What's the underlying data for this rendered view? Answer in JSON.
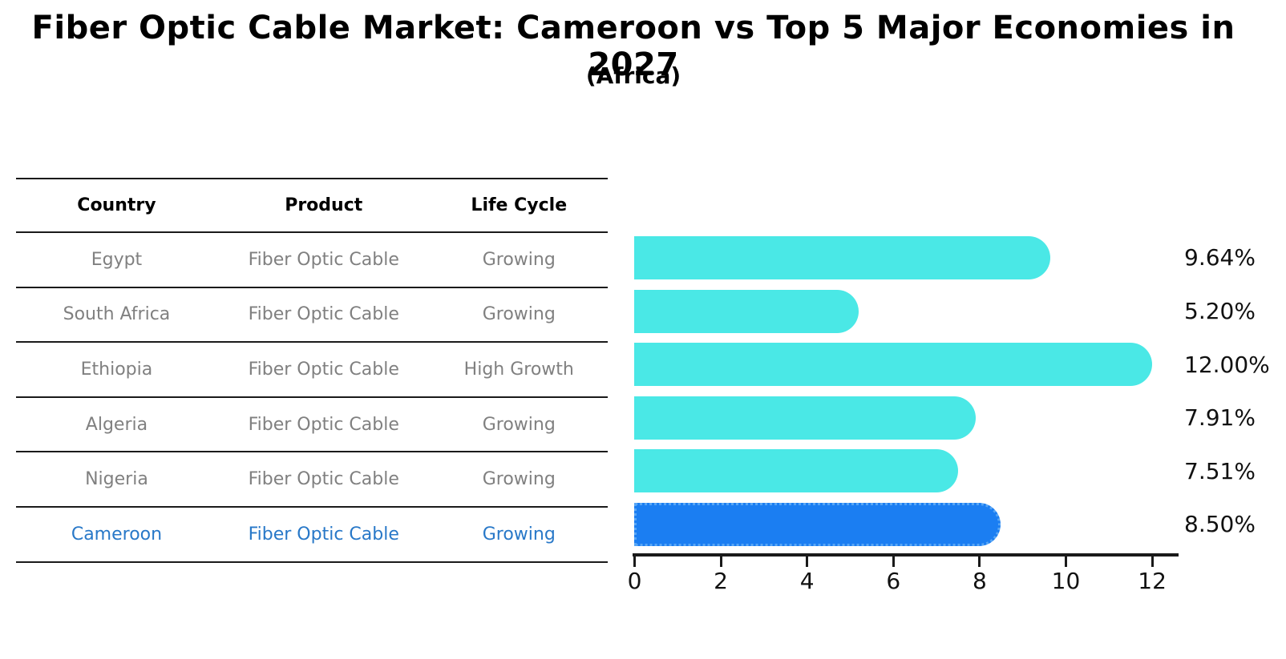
{
  "title": "Fiber Optic Cable Market: Cameroon vs Top 5 Major Economies in 2027",
  "subtitle": "(Africa)",
  "table": {
    "headers": [
      "Country",
      "Product",
      "Life Cycle"
    ],
    "rows": [
      {
        "country": "Egypt",
        "product": "Fiber Optic Cable",
        "life_cycle": "Growing",
        "highlight": false
      },
      {
        "country": "South Africa",
        "product": "Fiber Optic Cable",
        "life_cycle": "Growing",
        "highlight": false
      },
      {
        "country": "Ethiopia",
        "product": "Fiber Optic Cable",
        "life_cycle": "High Growth",
        "highlight": false
      },
      {
        "country": "Algeria",
        "product": "Fiber Optic Cable",
        "life_cycle": "Growing",
        "highlight": false
      },
      {
        "country": "Nigeria",
        "product": "Fiber Optic Cable",
        "life_cycle": "Growing",
        "highlight": false
      },
      {
        "country": "Cameroon",
        "product": "Fiber Optic Cable",
        "life_cycle": "Growing",
        "highlight": true
      }
    ]
  },
  "chart_data": {
    "type": "bar",
    "orientation": "horizontal",
    "title": "Fiber Optic Cable Market: Cameroon vs Top 5 Major Economies in 2027 (Africa)",
    "categories": [
      "Egypt",
      "South Africa",
      "Ethiopia",
      "Algeria",
      "Nigeria",
      "Cameroon"
    ],
    "values": [
      9.64,
      5.2,
      12.0,
      7.91,
      7.51,
      8.5
    ],
    "value_labels": [
      "9.64%",
      "5.20%",
      "12.00%",
      "7.91%",
      "7.51%",
      "8.50%"
    ],
    "x_ticks": [
      0,
      2,
      4,
      6,
      8,
      10,
      12
    ],
    "xlim": [
      0,
      12.6
    ],
    "grid": false,
    "legend": "none",
    "highlight_index": 5,
    "bar_color": "#4ae8e6",
    "highlight_color": "#1b7ef2",
    "highlight_border_color": "#58a6f5",
    "highlight_text_color": "#2878c8"
  }
}
